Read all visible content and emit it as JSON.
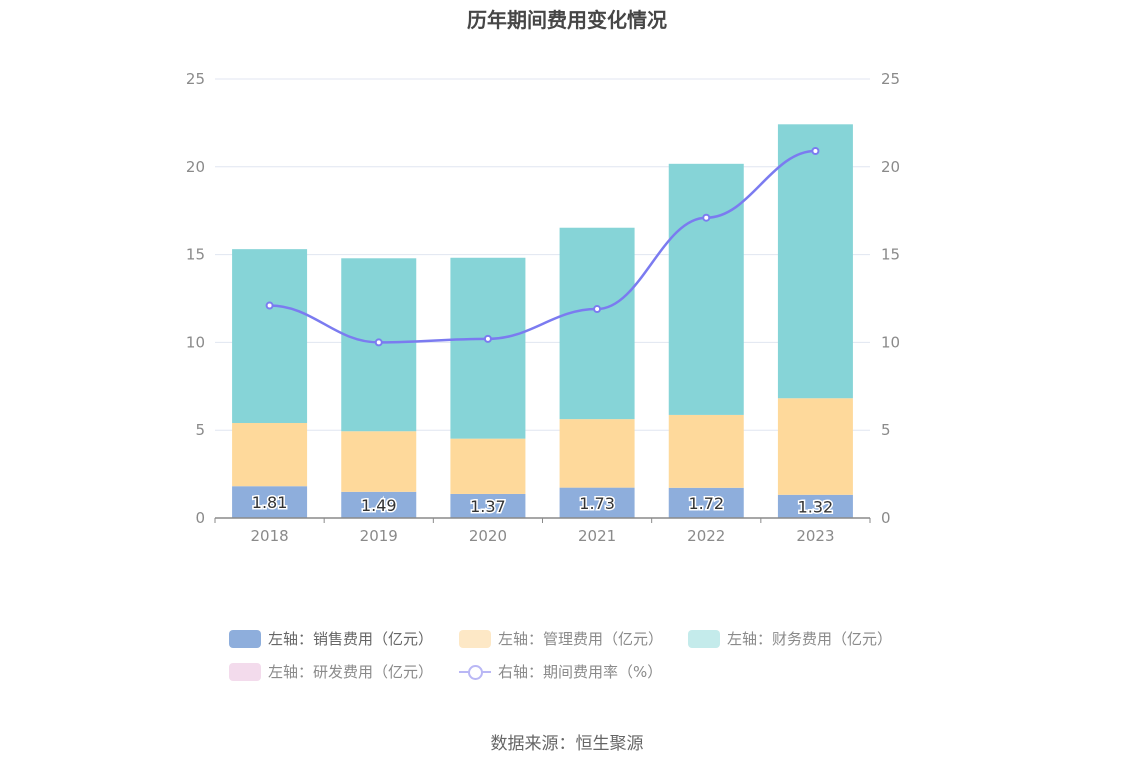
{
  "title": "历年期间费用变化情况",
  "source": "数据来源：恒生聚源",
  "legend": [
    {
      "label": "左轴：销售费用（亿元）",
      "color": "#8eaedc"
    },
    {
      "label": "左轴：管理费用（亿元）",
      "color": "#fde8c6"
    },
    {
      "label": "左轴：财务费用（亿元）",
      "color": "#c4ebeb"
    },
    {
      "label": "左轴：研发费用（亿元）",
      "color": "#f3dbec"
    },
    {
      "label": "右轴：期间费用率（%）",
      "color": "#b9b7f5"
    }
  ],
  "chart_data": {
    "type": "bar",
    "stacked": true,
    "categories": [
      "2018",
      "2019",
      "2020",
      "2021",
      "2022",
      "2023"
    ],
    "series": [
      {
        "name": "左轴：销售费用（亿元）",
        "axis": "left",
        "color": "#8eaedc",
        "values": [
          1.81,
          1.49,
          1.37,
          1.73,
          1.72,
          1.32
        ],
        "labels": [
          "1.81",
          "1.49",
          "1.37",
          "1.73",
          "1.72",
          "1.32"
        ]
      },
      {
        "name": "左轴：管理费用（亿元）",
        "axis": "left",
        "color": "#fed99b",
        "values": [
          3.6,
          3.45,
          3.15,
          3.9,
          4.15,
          5.5
        ]
      },
      {
        "name": "左轴：财务费用（亿元）",
        "axis": "left",
        "color": "#86d4d7",
        "values": [
          9.9,
          9.85,
          10.3,
          10.9,
          14.3,
          15.6
        ]
      },
      {
        "name": "左轴：研发费用（亿元）",
        "axis": "left",
        "color": "#f3dbec",
        "values": [
          0,
          0,
          0,
          0,
          0,
          0
        ]
      },
      {
        "name": "右轴：期间费用率（%）",
        "axis": "right",
        "type": "line",
        "color": "#7b7bf0",
        "values": [
          12.1,
          10.0,
          10.2,
          11.9,
          17.1,
          20.9
        ]
      }
    ],
    "y_left": {
      "min": 0,
      "max": 25,
      "ticks": [
        "0",
        "5",
        "10",
        "15",
        "20",
        "25"
      ]
    },
    "y_right": {
      "min": 0,
      "max": 25,
      "ticks": [
        "0",
        "5",
        "10",
        "15",
        "20",
        "25"
      ]
    },
    "grid": true,
    "legend_position": "bottom"
  }
}
